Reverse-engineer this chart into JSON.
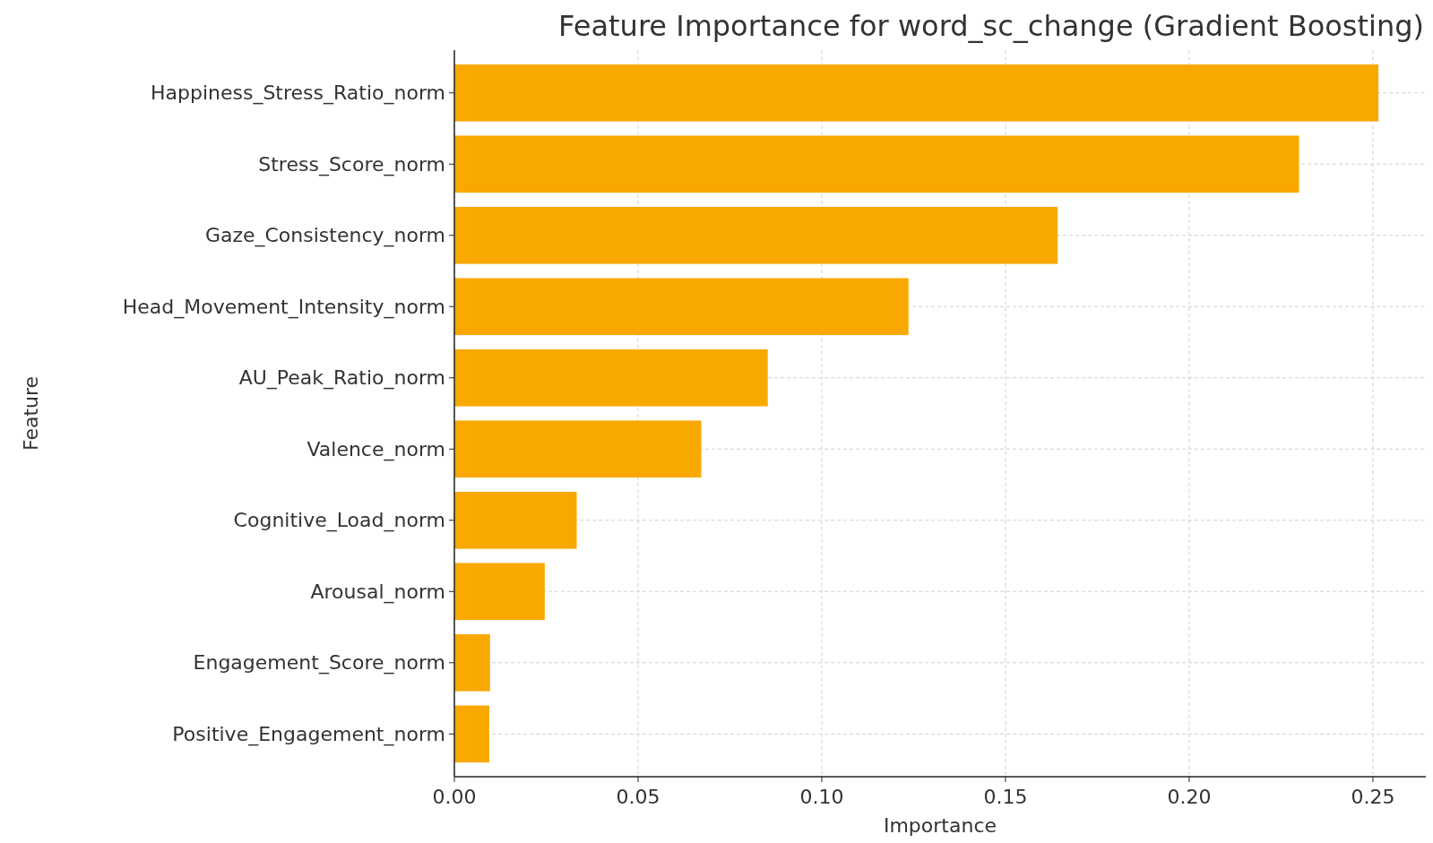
{
  "chart_data": {
    "type": "bar",
    "orientation": "horizontal",
    "title": "Feature Importance for word_sc_change (Gradient Boosting)",
    "xlabel": "Importance",
    "ylabel": "Feature",
    "categories": [
      "Happiness_Stress_Ratio_norm",
      "Stress_Score_norm",
      "Gaze_Consistency_norm",
      "Head_Movement_Intensity_norm",
      "AU_Peak_Ratio_norm",
      "Valence_norm",
      "Cognitive_Load_norm",
      "Arousal_norm",
      "Engagement_Score_norm",
      "Positive_Engagement_norm"
    ],
    "values": [
      0.2515,
      0.2299,
      0.1642,
      0.1236,
      0.0853,
      0.0672,
      0.0333,
      0.0246,
      0.0097,
      0.0095
    ],
    "color": "#f9a800",
    "xlim": [
      0,
      0.2644
    ],
    "xticks": [
      {
        "value": 0,
        "label": "0.00"
      },
      0.05,
      {
        "value": 0.1,
        "label": "0.10"
      },
      0.15,
      {
        "value": 0.2,
        "label": "0.20"
      },
      0.25
    ],
    "grid": true
  }
}
